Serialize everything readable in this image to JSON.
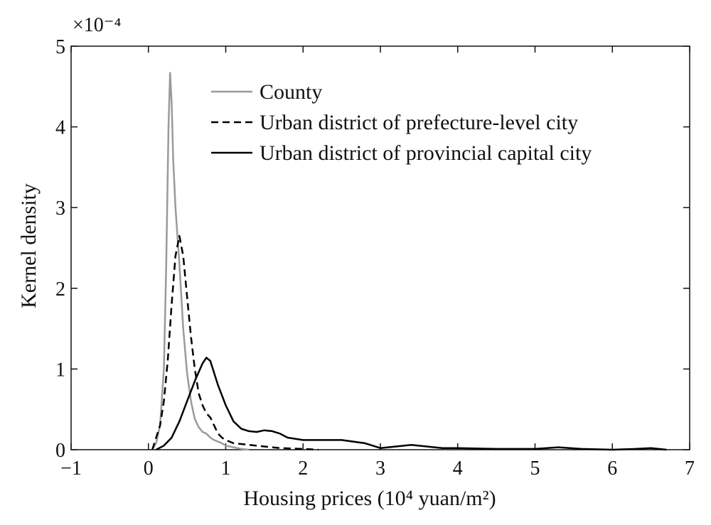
{
  "chart_data": {
    "type": "line",
    "xlabel": "Housing prices (10⁴ yuan/m²)",
    "ylabel": "Kernel density",
    "y_multiplier": "×10⁻⁴",
    "xlim": [
      -1,
      7
    ],
    "ylim": [
      0,
      5
    ],
    "x_ticks": [
      "−1",
      "0",
      "1",
      "2",
      "3",
      "4",
      "5",
      "6",
      "7"
    ],
    "y_ticks": [
      "0",
      "1",
      "2",
      "3",
      "4",
      "5"
    ],
    "grid": false,
    "legend_position": "top-right",
    "series": [
      {
        "name": "County",
        "color": "#9a9a9a",
        "style": "solid",
        "x": [
          0.05,
          0.1,
          0.15,
          0.2,
          0.23,
          0.26,
          0.28,
          0.3,
          0.32,
          0.35,
          0.4,
          0.45,
          0.5,
          0.55,
          0.6,
          0.65,
          0.7,
          0.75,
          0.8,
          0.85,
          0.9,
          0.95,
          1.0,
          1.1,
          1.2,
          1.3
        ],
        "y": [
          0.0,
          0.08,
          0.3,
          1.0,
          2.3,
          4.0,
          4.67,
          4.3,
          3.6,
          3.0,
          2.3,
          1.5,
          0.95,
          0.6,
          0.38,
          0.28,
          0.22,
          0.2,
          0.15,
          0.12,
          0.1,
          0.08,
          0.05,
          0.03,
          0.01,
          0.0
        ]
      },
      {
        "name": "Urban district of prefecture-level city",
        "color": "#000000",
        "style": "dashed",
        "x": [
          0.05,
          0.1,
          0.15,
          0.2,
          0.25,
          0.3,
          0.35,
          0.4,
          0.45,
          0.5,
          0.55,
          0.6,
          0.65,
          0.7,
          0.75,
          0.8,
          0.85,
          0.9,
          0.95,
          1.0,
          1.1,
          1.2,
          1.3,
          1.5,
          1.7,
          2.0,
          2.2
        ],
        "y": [
          0.0,
          0.15,
          0.3,
          0.6,
          1.1,
          1.8,
          2.4,
          2.65,
          2.4,
          1.9,
          1.4,
          1.0,
          0.7,
          0.55,
          0.45,
          0.4,
          0.3,
          0.2,
          0.15,
          0.12,
          0.08,
          0.07,
          0.06,
          0.04,
          0.02,
          0.01,
          0.0
        ]
      },
      {
        "name": "Urban district of provincial capital city",
        "color": "#000000",
        "style": "solid",
        "x": [
          0.1,
          0.2,
          0.3,
          0.4,
          0.5,
          0.6,
          0.7,
          0.75,
          0.8,
          0.85,
          0.9,
          1.0,
          1.1,
          1.2,
          1.3,
          1.4,
          1.5,
          1.6,
          1.7,
          1.8,
          2.0,
          2.2,
          2.5,
          2.8,
          3.0,
          3.2,
          3.4,
          3.6,
          3.8,
          4.0,
          4.5,
          5.0,
          5.3,
          5.6,
          6.0,
          6.3,
          6.5,
          6.7
        ],
        "y": [
          0.0,
          0.05,
          0.15,
          0.35,
          0.6,
          0.85,
          1.07,
          1.14,
          1.1,
          0.95,
          0.8,
          0.55,
          0.35,
          0.26,
          0.23,
          0.22,
          0.24,
          0.23,
          0.2,
          0.15,
          0.12,
          0.12,
          0.12,
          0.08,
          0.02,
          0.04,
          0.06,
          0.04,
          0.02,
          0.02,
          0.01,
          0.01,
          0.03,
          0.01,
          0.0,
          0.01,
          0.02,
          0.0
        ]
      }
    ]
  }
}
